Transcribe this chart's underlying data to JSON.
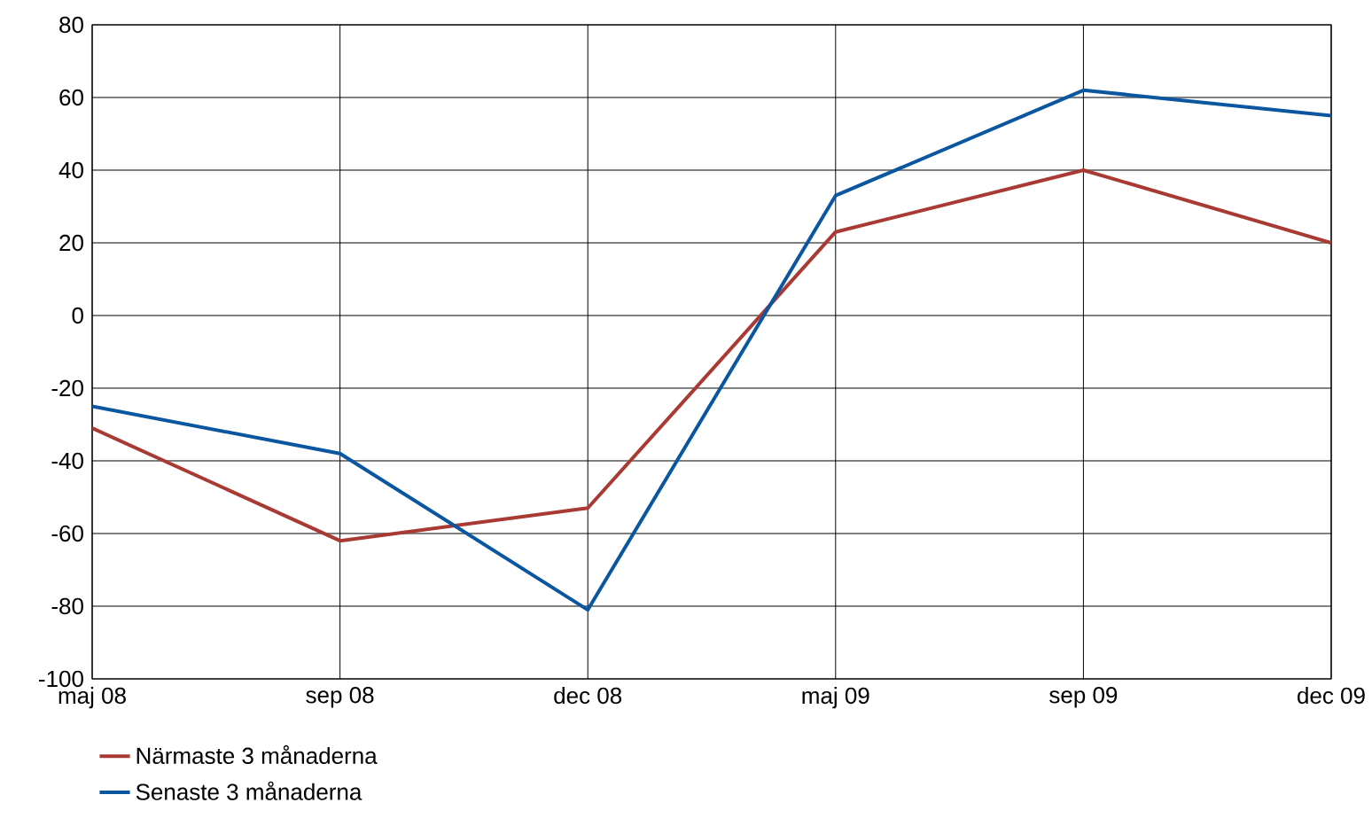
{
  "chart_data": {
    "type": "line",
    "categories": [
      "maj 08",
      "sep 08",
      "dec 08",
      "maj 09",
      "sep 09",
      "dec 09"
    ],
    "series": [
      {
        "name": "Närmaste 3 månaderna",
        "color": "#a93a33",
        "values": [
          -31,
          -62,
          -53,
          23,
          40,
          20
        ]
      },
      {
        "name": "Senaste 3 månaderna",
        "color": "#0a56a0",
        "values": [
          -25,
          -38,
          -81,
          33,
          62,
          55
        ]
      }
    ],
    "ylim": [
      -100,
      80
    ],
    "yticks": [
      -100,
      -80,
      -60,
      -40,
      -20,
      0,
      20,
      40,
      60,
      80
    ],
    "grid": true,
    "legend": "bottom left",
    "marker": "none",
    "line_style": "solid"
  }
}
